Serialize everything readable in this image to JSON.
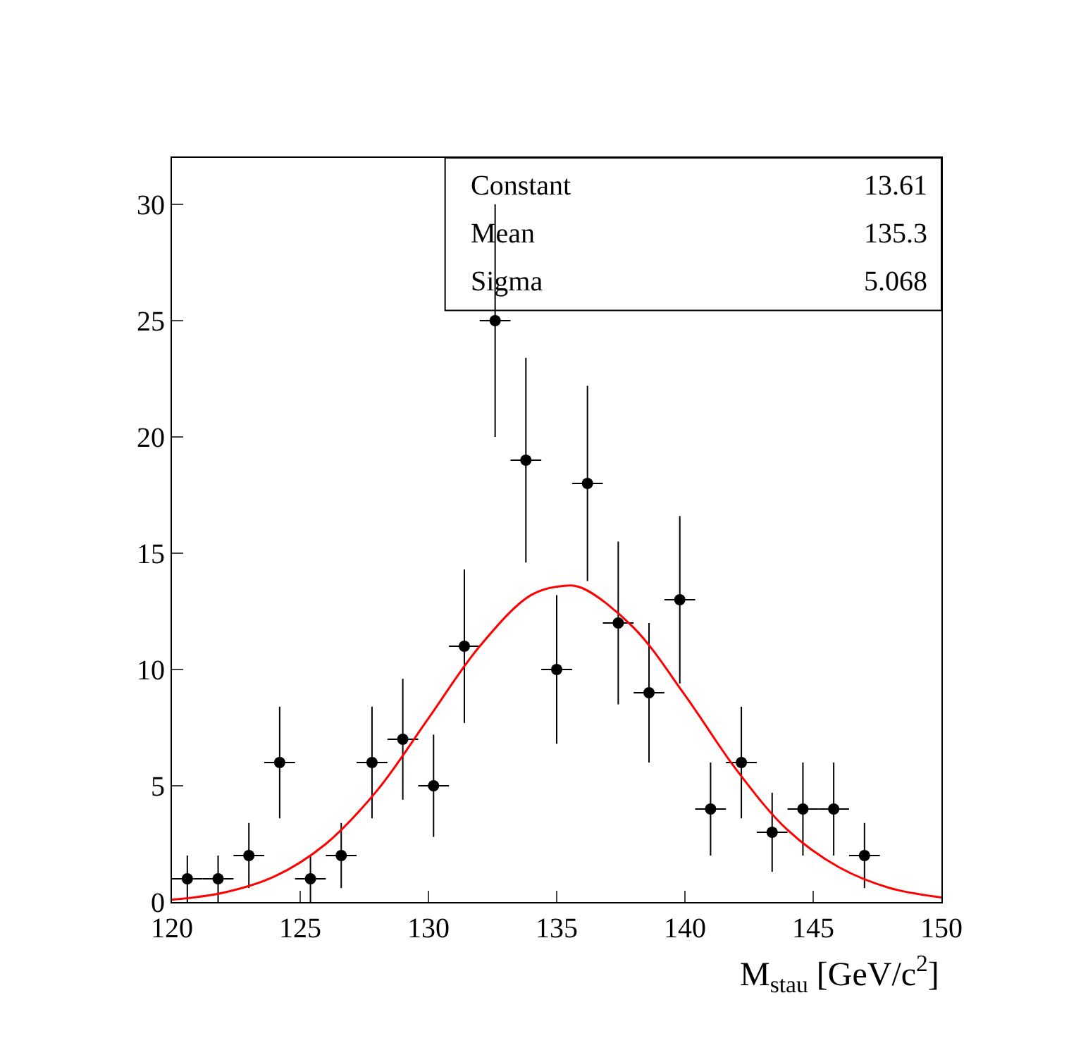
{
  "chart_data": {
    "type": "scatter",
    "xlabel": "M$_{stau}$ [GeV/c$^{2}$]",
    "xlim": [
      120,
      150
    ],
    "xticks": [
      120,
      125,
      130,
      135,
      140,
      145,
      150
    ],
    "ylim": [
      0,
      32
    ],
    "yticks": [
      0,
      5,
      10,
      15,
      20,
      25,
      30
    ],
    "series": [
      {
        "color": "#000000",
        "marker": "circle",
        "x": [
          120.6,
          121.8,
          123.0,
          124.2,
          125.4,
          126.6,
          127.8,
          129.0,
          130.2,
          131.4,
          132.6,
          133.8,
          135.0,
          136.2,
          137.4,
          138.6,
          139.8,
          141.0,
          142.2,
          143.4,
          144.6,
          145.8,
          147.0
        ],
        "values": [
          1,
          1,
          2,
          6,
          1,
          2,
          6,
          7,
          5,
          11,
          25,
          19,
          10,
          18,
          12,
          9,
          13,
          4,
          6,
          3,
          4,
          4,
          2
        ],
        "errors": [
          1,
          1,
          1.4,
          2.4,
          1,
          1.4,
          2.4,
          2.6,
          2.2,
          3.3,
          5,
          4.4,
          3.2,
          4.2,
          3.5,
          3,
          3.6,
          2,
          2.4,
          1.7,
          2,
          2,
          1.4
        ],
        "xerrors": [
          0.6,
          0.6,
          0.6,
          0.6,
          0.6,
          0.6,
          0.6,
          0.6,
          0.6,
          0.6,
          0.6,
          0.6,
          0.6,
          0.6,
          0.6,
          0.6,
          0.6,
          0.6,
          0.6,
          0.6,
          0.6,
          0.6,
          0.6
        ]
      },
      {
        "type": "line",
        "color": "#ff0000",
        "marker": "none",
        "line_style": "solid",
        "x": [
          120,
          122,
          124,
          126,
          128,
          130,
          132,
          134,
          135.3,
          136,
          138,
          140,
          142,
          144,
          146,
          148,
          150
        ],
        "values": [
          0.1,
          0.4,
          1.1,
          2.5,
          4.8,
          7.9,
          11.0,
          13.2,
          13.6,
          13.5,
          11.8,
          8.9,
          5.7,
          3.1,
          1.5,
          0.6,
          0.2
        ]
      }
    ],
    "annotations": [
      "Constant 13.61",
      "Mean 135.3",
      "Sigma 5.068"
    ]
  }
}
